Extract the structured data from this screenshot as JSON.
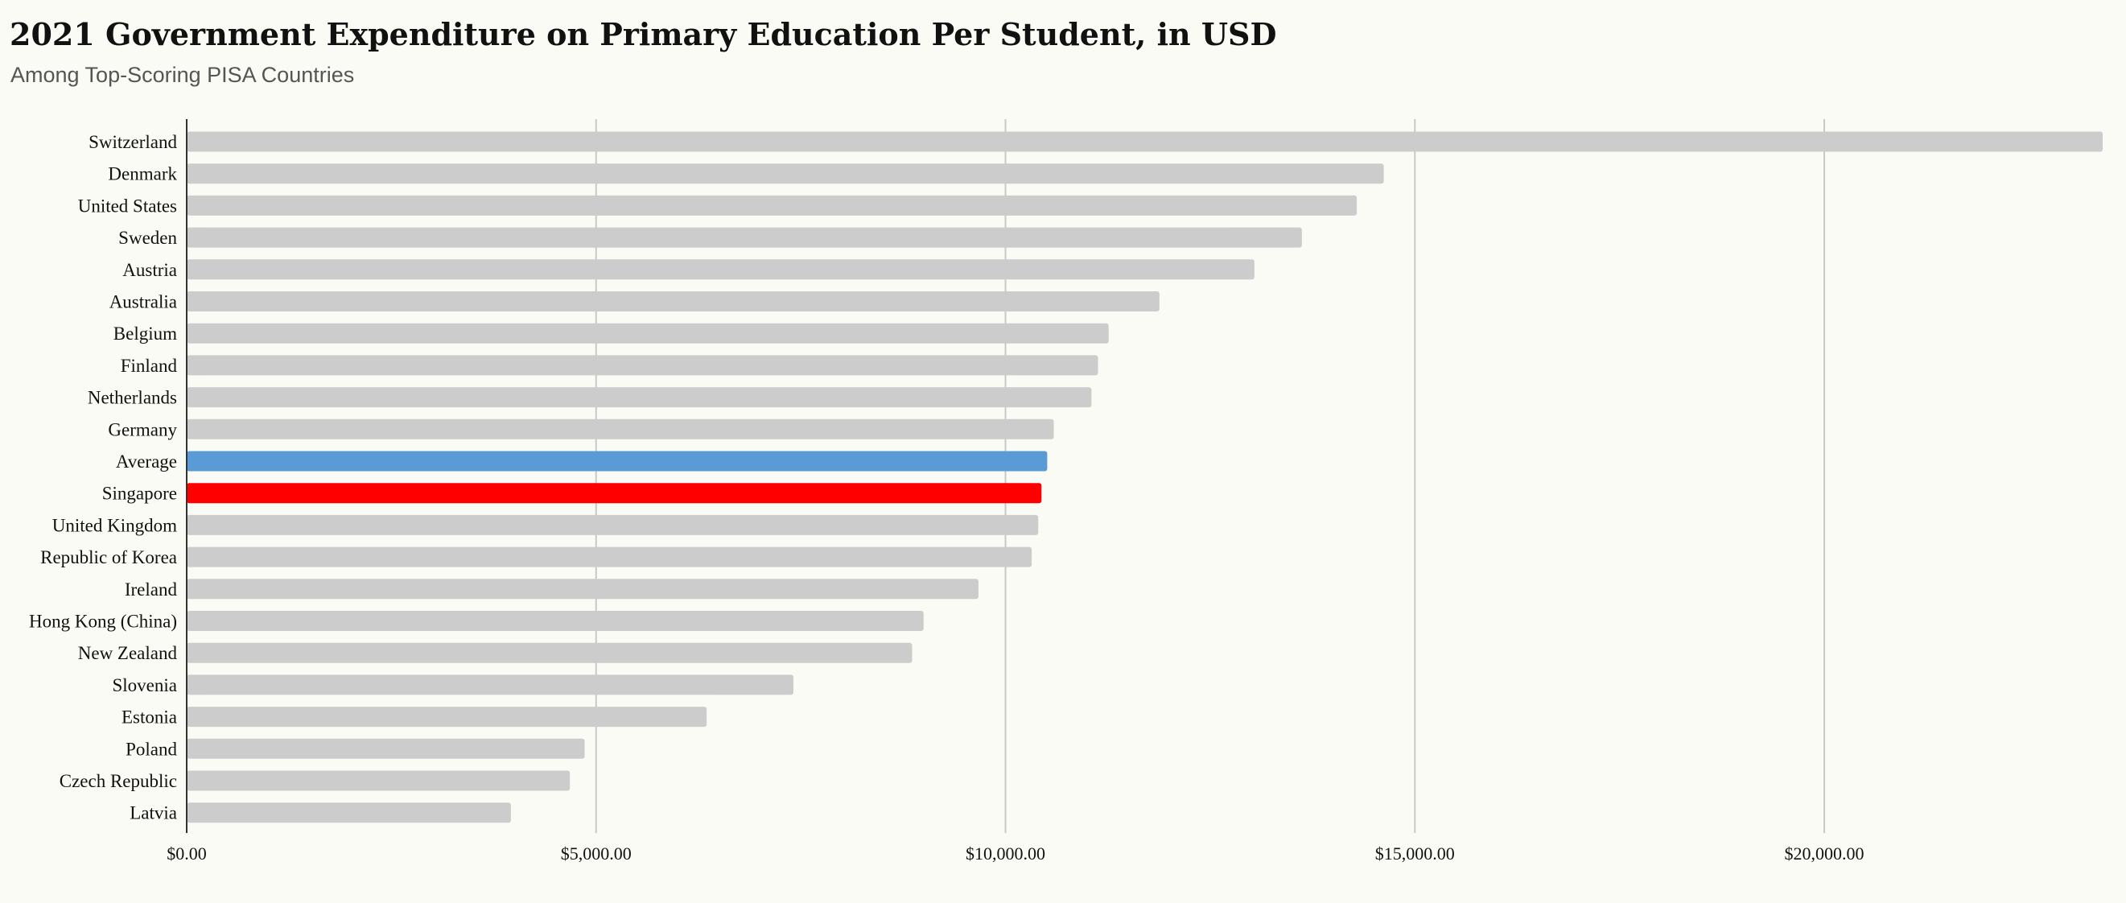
{
  "title": "2021 Government Expenditure on Primary Education Per Student, in USD",
  "subtitle": "Among Top-Scoring PISA Countries",
  "chart_data": {
    "type": "bar",
    "orientation": "horizontal",
    "title": "2021 Government Expenditure on Primary Education Per Student, in USD",
    "subtitle": "Among Top-Scoring PISA Countries",
    "xlabel": "",
    "ylabel": "",
    "xlim": [
      0,
      23400
    ],
    "grid": true,
    "x_ticks": [
      0,
      5000,
      10000,
      15000,
      20000
    ],
    "x_tick_labels": [
      "$0.00",
      "$5,000.00",
      "$10,000.00",
      "$15,000.00",
      "$20,000.00"
    ],
    "categories": [
      "Switzerland",
      "Denmark",
      "United States",
      "Sweden",
      "Austria",
      "Australia",
      "Belgium",
      "Finland",
      "Netherlands",
      "Germany",
      "Average",
      "Singapore",
      "United Kingdom",
      "Republic of Korea",
      "Ireland",
      "Hong Kong (China)",
      "New Zealand",
      "Slovenia",
      "Estonia",
      "Poland",
      "Czech Republic",
      "Latvia"
    ],
    "values": [
      23400,
      14620,
      14290,
      13620,
      13040,
      11880,
      11260,
      11130,
      11050,
      10590,
      10510,
      10440,
      10400,
      10320,
      9670,
      9000,
      8860,
      7410,
      6350,
      4860,
      4680,
      3960
    ],
    "colors": {
      "default": "#cccccc",
      "Average": "#5b9bd5",
      "Singapore": "#ff0000"
    },
    "axis_color": "#333333",
    "grid_color": "#c8c8c8"
  }
}
